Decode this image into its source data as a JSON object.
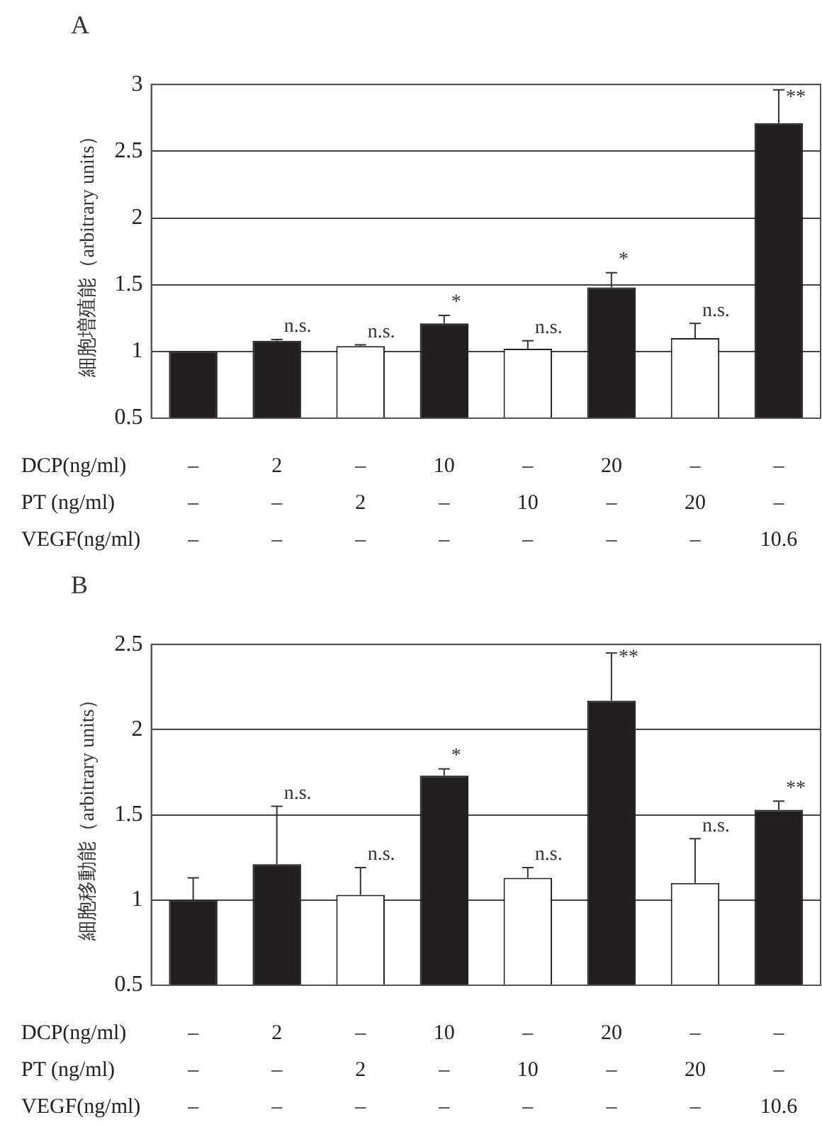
{
  "chart_data": [
    {
      "type": "bar",
      "title": "A",
      "ylabel": "細胞増殖能（arbitrary units）",
      "categories": [
        null,
        null,
        null,
        null,
        null,
        null,
        null,
        null
      ],
      "values": [
        1.0,
        1.08,
        1.04,
        1.21,
        1.02,
        1.48,
        1.1,
        2.71
      ],
      "colors": [
        "#231f20",
        "#231f20",
        "#ffffff",
        "#231f20",
        "#ffffff",
        "#231f20",
        "#ffffff",
        "#231f20"
      ],
      "errors": [
        null,
        [
          1.08,
          1.09
        ],
        [
          1.04,
          1.05
        ],
        [
          1.21,
          1.27
        ],
        [
          1.02,
          1.08
        ],
        [
          1.48,
          1.59
        ],
        [
          1.1,
          1.21
        ],
        [
          2.71,
          2.96
        ]
      ],
      "value_labels": [
        null,
        "n.s.",
        "n.s.",
        "*",
        "n.s.",
        "*",
        "n.s.",
        "**"
      ],
      "ylim": [
        0.5,
        3
      ],
      "yticks": [
        0.5,
        1,
        1.5,
        2,
        2.5,
        3
      ],
      "grid": "y",
      "legend": false,
      "annotations": [
        "DCP(ng/ml)",
        "–",
        "2",
        "–",
        "10",
        "–",
        "20",
        "–",
        "–",
        "PT (ng/ml)",
        "–",
        "–",
        "2",
        "–",
        "10",
        "–",
        "20",
        "–",
        "VEGF(ng/ml)",
        "–",
        "–",
        "–",
        "–",
        "–",
        "–",
        "–",
        "10.6"
      ]
    },
    {
      "type": "bar",
      "title": "B",
      "ylabel": "細胞移動能（arbitrary units）",
      "categories": [
        null,
        null,
        null,
        null,
        null,
        null,
        null,
        null
      ],
      "values": [
        1.0,
        1.21,
        1.03,
        1.73,
        1.13,
        2.17,
        1.1,
        1.53
      ],
      "colors": [
        "#231f20",
        "#231f20",
        "#ffffff",
        "#231f20",
        "#ffffff",
        "#231f20",
        "#ffffff",
        "#231f20"
      ],
      "errors": [
        [
          1.0,
          1.13
        ],
        [
          1.21,
          1.55
        ],
        [
          1.03,
          1.19
        ],
        [
          1.73,
          1.77
        ],
        [
          1.13,
          1.19
        ],
        [
          2.17,
          2.45
        ],
        [
          1.1,
          1.36
        ],
        [
          1.53,
          1.58
        ]
      ],
      "value_labels": [
        null,
        "n.s.",
        "n.s.",
        "*",
        "n.s.",
        "**",
        "n.s.",
        "**"
      ],
      "ylim": [
        0.5,
        2.5
      ],
      "yticks": [
        0.5,
        1,
        1.5,
        2,
        2.5
      ],
      "grid": "y",
      "legend": false,
      "annotations": [
        "DCP(ng/ml)",
        "–",
        "2",
        "–",
        "10",
        "–",
        "20",
        "–",
        "–",
        "PT (ng/ml)",
        "–",
        "–",
        "2",
        "–",
        "10",
        "–",
        "20",
        "–",
        "VEGF(ng/ml)",
        "–",
        "–",
        "–",
        "–",
        "–",
        "–",
        "–",
        "10.6"
      ]
    }
  ]
}
